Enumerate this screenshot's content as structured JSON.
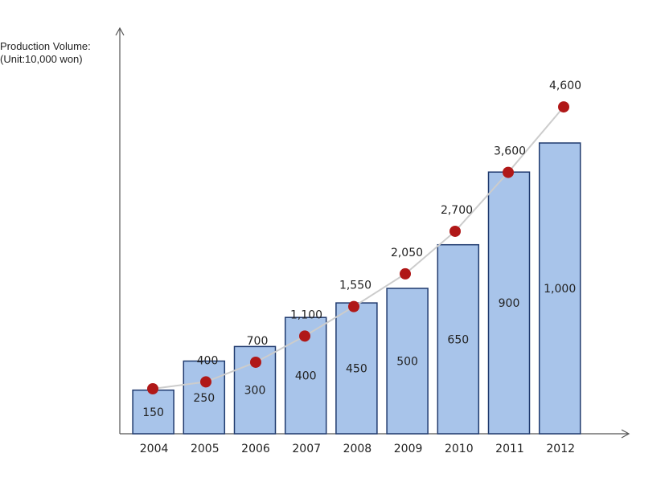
{
  "y_axis_label_line1": "Production Volume:",
  "y_axis_label_line2": "(Unit:10,000 won)",
  "colors": {
    "bar_fill": "#a8c4ea",
    "bar_stroke": "#1f3a6e",
    "line": "#cccccc",
    "dot": "#b01818",
    "axis": "#555555"
  },
  "chart_data": {
    "type": "bar",
    "categories": [
      "2004",
      "2005",
      "2006",
      "2007",
      "2008",
      "2009",
      "2010",
      "2011",
      "2012"
    ],
    "series": [
      {
        "type": "bar",
        "values": [
          150,
          250,
          300,
          400,
          450,
          500,
          650,
          900,
          1000
        ],
        "labels": [
          "150",
          "250",
          "300",
          "400",
          "450",
          "500",
          "650",
          "900",
          "1,000"
        ]
      },
      {
        "type": "line",
        "values": [
          null,
          400,
          700,
          1100,
          1550,
          2050,
          2700,
          3600,
          4600
        ],
        "labels": [
          "",
          "400",
          "700",
          "1,100",
          "1,550",
          "2,050",
          "2,700",
          "3,600",
          "4,600"
        ]
      }
    ],
    "grid": false
  }
}
